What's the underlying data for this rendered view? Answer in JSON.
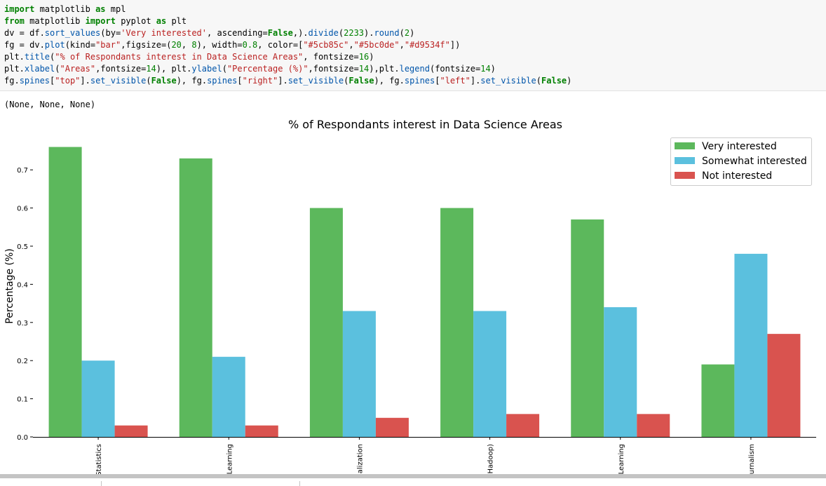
{
  "code_cell": {
    "lines": [
      [
        {
          "t": "import",
          "c": "kw"
        },
        {
          "t": " matplotlib "
        },
        {
          "t": "as",
          "c": "kw"
        },
        {
          "t": " mpl"
        }
      ],
      [
        {
          "t": "from",
          "c": "kw"
        },
        {
          "t": " matplotlib "
        },
        {
          "t": "import",
          "c": "kw"
        },
        {
          "t": " pyplot "
        },
        {
          "t": "as",
          "c": "kw"
        },
        {
          "t": " plt"
        }
      ],
      [
        {
          "t": "dv = df."
        },
        {
          "t": "sort_values",
          "c": "fn"
        },
        {
          "t": "(by="
        },
        {
          "t": "'Very interested'",
          "c": "str"
        },
        {
          "t": ", ascending="
        },
        {
          "t": "False",
          "c": "kw"
        },
        {
          "t": ",)."
        },
        {
          "t": "divide",
          "c": "fn"
        },
        {
          "t": "("
        },
        {
          "t": "2233",
          "c": "num"
        },
        {
          "t": ")."
        },
        {
          "t": "round",
          "c": "fn"
        },
        {
          "t": "("
        },
        {
          "t": "2",
          "c": "num"
        },
        {
          "t": ")"
        }
      ],
      [
        {
          "t": "fg = dv."
        },
        {
          "t": "plot",
          "c": "fn"
        },
        {
          "t": "(kind="
        },
        {
          "t": "\"bar\"",
          "c": "str"
        },
        {
          "t": ",figsize=("
        },
        {
          "t": "20",
          "c": "num"
        },
        {
          "t": ", "
        },
        {
          "t": "8",
          "c": "num"
        },
        {
          "t": "), width="
        },
        {
          "t": "0.8",
          "c": "num"
        },
        {
          "t": ", color=["
        },
        {
          "t": "\"#5cb85c\"",
          "c": "str"
        },
        {
          "t": ","
        },
        {
          "t": "\"#5bc0de\"",
          "c": "str"
        },
        {
          "t": ","
        },
        {
          "t": "\"#d9534f\"",
          "c": "str"
        },
        {
          "t": "])"
        }
      ],
      [
        {
          "t": "plt."
        },
        {
          "t": "title",
          "c": "fn"
        },
        {
          "t": "("
        },
        {
          "t": "\"% of Respondants interest in Data Science Areas\"",
          "c": "str"
        },
        {
          "t": ", fontsize="
        },
        {
          "t": "16",
          "c": "num"
        },
        {
          "t": ")"
        }
      ],
      [
        {
          "t": "plt."
        },
        {
          "t": "xlabel",
          "c": "fn"
        },
        {
          "t": "("
        },
        {
          "t": "\"Areas\"",
          "c": "str"
        },
        {
          "t": ",fontsize="
        },
        {
          "t": "14",
          "c": "num"
        },
        {
          "t": "), plt."
        },
        {
          "t": "ylabel",
          "c": "fn"
        },
        {
          "t": "("
        },
        {
          "t": "\"Percentage (%)\"",
          "c": "str"
        },
        {
          "t": ",fontsize="
        },
        {
          "t": "14",
          "c": "num"
        },
        {
          "t": "),plt."
        },
        {
          "t": "legend",
          "c": "fn"
        },
        {
          "t": "(fontsize="
        },
        {
          "t": "14",
          "c": "num"
        },
        {
          "t": ")"
        }
      ],
      [
        {
          "t": "fg."
        },
        {
          "t": "spines",
          "c": "fn"
        },
        {
          "t": "["
        },
        {
          "t": "\"top\"",
          "c": "str"
        },
        {
          "t": "]."
        },
        {
          "t": "set_visible",
          "c": "fn"
        },
        {
          "t": "("
        },
        {
          "t": "False",
          "c": "kw"
        },
        {
          "t": "), fg."
        },
        {
          "t": "spines",
          "c": "fn"
        },
        {
          "t": "["
        },
        {
          "t": "\"right\"",
          "c": "str"
        },
        {
          "t": "]."
        },
        {
          "t": "set_visible",
          "c": "fn"
        },
        {
          "t": "("
        },
        {
          "t": "False",
          "c": "kw"
        },
        {
          "t": "), fg."
        },
        {
          "t": "spines",
          "c": "fn"
        },
        {
          "t": "["
        },
        {
          "t": "\"left\"",
          "c": "str"
        },
        {
          "t": "]."
        },
        {
          "t": "set_visible",
          "c": "fn"
        },
        {
          "t": "("
        },
        {
          "t": "False",
          "c": "kw"
        },
        {
          "t": ")"
        }
      ]
    ]
  },
  "output_text": "(None, None, None)",
  "chart_data": {
    "type": "bar",
    "title": "% of Respondants interest in Data Science Areas",
    "xlabel": "",
    "ylabel": "Percentage (%)",
    "categories": [
      "Statistics",
      "Learning",
      "alization",
      "Hadoop)",
      "Learning",
      "urnalism"
    ],
    "series": [
      {
        "name": "Very interested",
        "color": "#5cb85c",
        "values": [
          0.76,
          0.73,
          0.6,
          0.6,
          0.57,
          0.19
        ]
      },
      {
        "name": "Somewhat interested",
        "color": "#5bc0de",
        "values": [
          0.2,
          0.21,
          0.33,
          0.33,
          0.34,
          0.48
        ]
      },
      {
        "name": "Not interested",
        "color": "#d9534f",
        "values": [
          0.03,
          0.03,
          0.05,
          0.06,
          0.06,
          0.27
        ]
      }
    ],
    "yticks": [
      "0.0",
      "0.1",
      "0.2",
      "0.3",
      "0.4",
      "0.5",
      "0.6",
      "0.7"
    ],
    "ylim": [
      0,
      0.8
    ],
    "grid": false,
    "legend_position": "top-right"
  }
}
